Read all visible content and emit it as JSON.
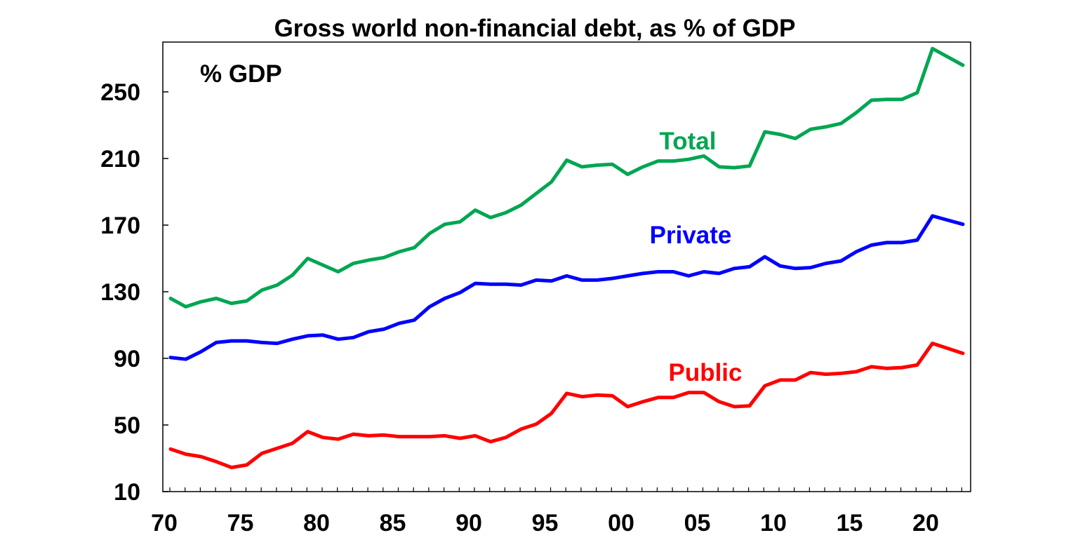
{
  "chart_data": {
    "type": "line",
    "title": "Gross world non-financial debt, as % of GDP",
    "ylabel": "% GDP",
    "xlabel": "",
    "xlim": [
      1970,
      2023
    ],
    "ylim": [
      10,
      280
    ],
    "y_ticks": [
      10,
      50,
      90,
      130,
      170,
      210,
      250
    ],
    "x_ticks": [
      1970,
      1975,
      1980,
      1985,
      1990,
      1995,
      2000,
      2005,
      2010,
      2015,
      2020
    ],
    "x_tick_labels": [
      "70",
      "75",
      "80",
      "85",
      "90",
      "95",
      "00",
      "05",
      "10",
      "15",
      "20"
    ],
    "grid": false,
    "colors": {
      "Total": "#00a651",
      "Private": "#0000ff",
      "Public": "#ff0000"
    },
    "x": [
      1970,
      1971,
      1972,
      1973,
      1974,
      1975,
      1976,
      1977,
      1978,
      1979,
      1980,
      1981,
      1982,
      1983,
      1984,
      1985,
      1986,
      1987,
      1988,
      1989,
      1990,
      1991,
      1992,
      1993,
      1994,
      1995,
      1996,
      1997,
      1998,
      1999,
      2000,
      2001,
      2002,
      2003,
      2004,
      2005,
      2006,
      2007,
      2008,
      2009,
      2010,
      2011,
      2012,
      2013,
      2014,
      2015,
      2016,
      2017,
      2018,
      2019,
      2020,
      2021,
      2022
    ],
    "series": [
      {
        "name": "Total",
        "values": [
          126,
          121,
          124,
          126,
          123,
          124.5,
          131,
          134,
          140,
          150,
          146,
          142,
          147,
          149,
          150.5,
          154,
          156.5,
          165,
          170.5,
          172,
          179,
          174.5,
          177.5,
          182,
          189,
          196,
          209,
          205,
          206,
          206.5,
          200.5,
          205,
          208.5,
          208.5,
          209.5,
          211.5,
          205,
          204.5,
          205.5,
          226,
          224.5,
          222,
          227.5,
          229,
          231,
          237.5,
          245,
          245.5,
          245.5,
          249.5,
          276,
          271,
          266
        ]
      },
      {
        "name": "Private",
        "values": [
          90.5,
          89.5,
          94,
          99.5,
          100.5,
          100.5,
          99.5,
          99,
          101.5,
          103.5,
          104,
          101.5,
          102.5,
          106,
          107.5,
          111,
          113,
          121,
          126,
          129.5,
          135,
          134.5,
          134.5,
          134,
          137,
          136.5,
          139.5,
          137,
          137,
          138,
          139.5,
          141,
          142,
          142,
          139.5,
          142,
          141,
          144,
          145,
          151,
          145.5,
          144,
          144.5,
          147,
          148.5,
          154,
          158,
          159.5,
          159.5,
          161,
          175.5,
          173,
          170.5
        ]
      },
      {
        "name": "Public",
        "values": [
          35.5,
          32.5,
          31,
          28,
          24.5,
          26,
          33,
          36,
          39,
          46,
          42.5,
          41.5,
          44.5,
          43.5,
          44,
          43,
          43,
          43,
          43.5,
          42,
          43.5,
          40,
          42.5,
          47.5,
          50.5,
          57,
          69,
          67,
          68,
          67.5,
          61,
          64,
          66.5,
          66.5,
          69.5,
          69.5,
          64,
          61,
          61.5,
          73.5,
          77,
          77,
          81.5,
          80.5,
          81,
          82,
          85,
          84,
          84.5,
          86,
          99,
          96,
          93
        ]
      }
    ]
  },
  "labels": {
    "total": "Total",
    "private": "Private",
    "public": "Public"
  }
}
